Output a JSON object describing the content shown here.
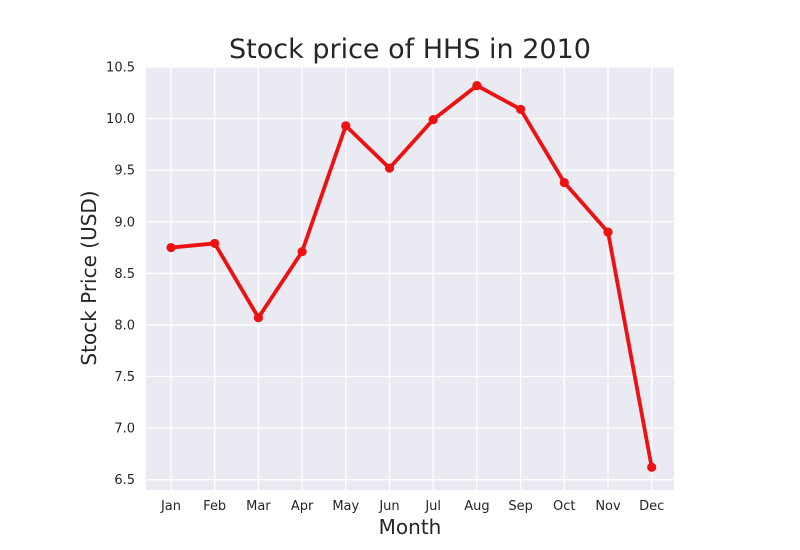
{
  "chart_data": {
    "type": "line",
    "title": "Stock price of HHS in 2010",
    "xlabel": "Month",
    "ylabel": "Stock Price (USD)",
    "categories": [
      "Jan",
      "Feb",
      "Mar",
      "Apr",
      "May",
      "Jun",
      "Jul",
      "Aug",
      "Sep",
      "Oct",
      "Nov",
      "Dec"
    ],
    "series": [
      {
        "values": [
          8.75,
          8.79,
          8.07,
          8.71,
          9.93,
          9.52,
          9.99,
          10.32,
          10.09,
          9.38,
          8.9,
          6.62
        ]
      }
    ],
    "ylim": [
      6.4,
      10.5
    ],
    "yticks": [
      "6.5",
      "7.0",
      "7.5",
      "8.0",
      "8.5",
      "9.0",
      "9.5",
      "10.0",
      "10.5"
    ],
    "grid": true,
    "colors": {
      "line": "#ee1111",
      "plot_background": "#eaeaf2",
      "grid": "#ffffff",
      "text": "#262626"
    }
  }
}
